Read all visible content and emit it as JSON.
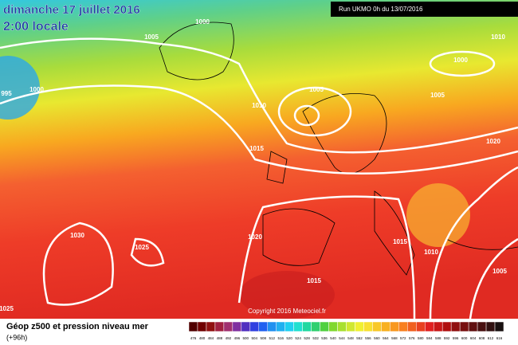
{
  "header": {
    "date": "dimanche 17 juillet 2016",
    "time": "2:00 locale",
    "run": "Run UKMO 0h du 13/07/2016"
  },
  "isobar_labels": [
    1000,
    1005,
    1000,
    995,
    1005,
    1010,
    1000,
    1005,
    1010,
    1015,
    1020,
    1030,
    1025,
    1020,
    1015,
    1010,
    1015,
    1005,
    1025
  ],
  "copyright": "Copyright 2016 Meteociel.fr",
  "legend": {
    "title": "Géop z500 et pression niveau mer",
    "subtitle": "(+96h)",
    "scale": [
      476,
      480,
      484,
      488,
      492,
      496,
      500,
      504,
      508,
      512,
      516,
      520,
      524,
      528,
      532,
      536,
      540,
      544,
      548,
      552,
      556,
      560,
      564,
      568,
      572,
      576,
      580,
      584,
      588,
      592,
      596,
      600,
      604,
      608,
      612,
      616
    ]
  }
}
